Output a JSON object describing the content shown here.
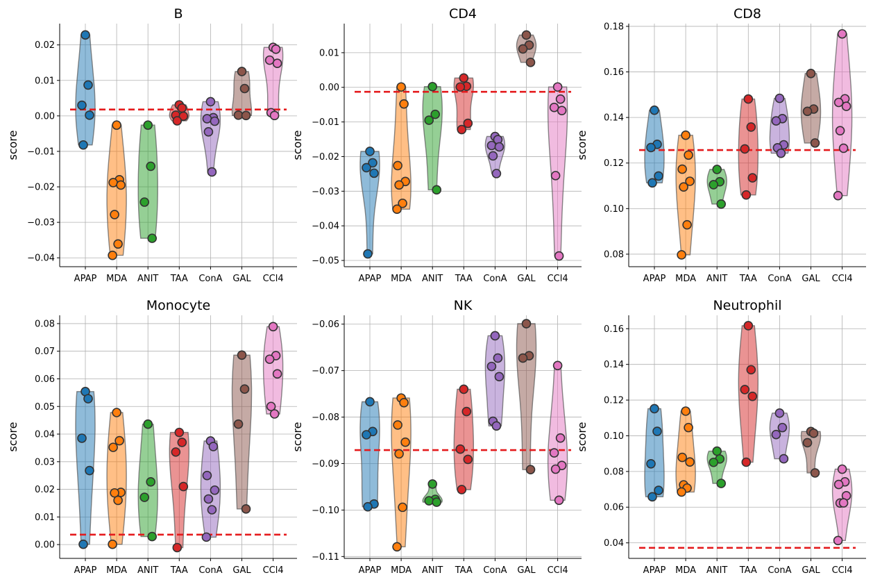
{
  "chart_data": [
    {
      "type": "violin",
      "title": "B",
      "ylabel": "score",
      "categories": [
        "APAP",
        "MDA",
        "ANIT",
        "TAA",
        "ConA",
        "GAL",
        "CCl4"
      ],
      "ylim": [
        -0.0425,
        0.026
      ],
      "yticks": [
        -0.04,
        -0.03,
        -0.02,
        -0.01,
        0.0,
        0.01,
        0.02
      ],
      "ytick_labels": [
        "−0.04",
        "−0.03",
        "−0.02",
        "−0.01",
        "0.00",
        "0.01",
        "0.02"
      ],
      "baseline": 0.0018,
      "grid": true,
      "series": [
        [
          0.0228,
          0.0087,
          0.003,
          0.0002,
          -0.0082
        ],
        [
          -0.0026,
          -0.018,
          -0.0188,
          -0.0195,
          -0.0278,
          -0.0361,
          -0.0393
        ],
        [
          -0.0026,
          -0.0142,
          -0.0243,
          -0.0345
        ],
        [
          0.0031,
          0.0022,
          0.0002,
          -0.0001,
          -0.0014
        ],
        [
          0.004,
          -0.0005,
          -0.0008,
          -0.0015,
          -0.0045,
          -0.0158
        ],
        [
          0.0125,
          0.0077,
          0.0002,
          0.0001
        ],
        [
          0.0193,
          0.0188,
          0.0157,
          0.0148,
          0.0009,
          0.0001
        ]
      ]
    },
    {
      "type": "violin",
      "title": "CD4",
      "ylabel": "score",
      "categories": [
        "APAP",
        "MDA",
        "ANIT",
        "TAA",
        "ConA",
        "GAL",
        "CCl4"
      ],
      "ylim": [
        -0.0518,
        0.0184
      ],
      "yticks": [
        -0.05,
        -0.04,
        -0.03,
        -0.02,
        -0.01,
        0.0,
        0.01
      ],
      "ytick_labels": [
        "−0.05",
        "−0.04",
        "−0.03",
        "−0.02",
        "−0.01",
        "0.00",
        "0.01"
      ],
      "baseline": -0.0013,
      "grid": true,
      "series": [
        [
          -0.0185,
          -0.0218,
          -0.0232,
          -0.0248,
          -0.0481
        ],
        [
          0.0001,
          -0.0048,
          -0.0226,
          -0.0272,
          -0.0282,
          -0.0335,
          -0.0352
        ],
        [
          0.0002,
          -0.0078,
          -0.0095,
          -0.0296
        ],
        [
          0.0027,
          0.0003,
          0.0001,
          -0.0104,
          -0.0122
        ],
        [
          -0.0142,
          -0.0151,
          -0.0168,
          -0.0172,
          -0.0198,
          -0.0249
        ],
        [
          0.0151,
          0.0122,
          0.0111,
          0.0072
        ],
        [
          0.0001,
          -0.0034,
          -0.0058,
          -0.0067,
          -0.0255,
          -0.0487
        ]
      ]
    },
    {
      "type": "violin",
      "title": "CD8",
      "ylabel": "score",
      "categories": [
        "APAP",
        "MDA",
        "ANIT",
        "TAA",
        "ConA",
        "GAL",
        "CCl4"
      ],
      "ylim": [
        0.0745,
        0.1812
      ],
      "yticks": [
        0.08,
        0.1,
        0.12,
        0.14,
        0.16,
        0.18
      ],
      "ytick_labels": [
        "0.08",
        "0.10",
        "0.12",
        "0.14",
        "0.16",
        "0.18"
      ],
      "baseline": 0.1257,
      "grid": true,
      "series": [
        [
          0.1432,
          0.1282,
          0.1268,
          0.1143,
          0.1113
        ],
        [
          0.1322,
          0.1235,
          0.1173,
          0.112,
          0.1095,
          0.0929,
          0.0797
        ],
        [
          0.1172,
          0.1118,
          0.1105,
          0.102
        ],
        [
          0.1481,
          0.1358,
          0.1262,
          0.1135,
          0.106
        ],
        [
          0.1484,
          0.1395,
          0.1385,
          0.128,
          0.1267,
          0.1243
        ],
        [
          0.1593,
          0.1437,
          0.1427,
          0.1288
        ],
        [
          0.1767,
          0.1482,
          0.1466,
          0.1449,
          0.1342,
          0.1265,
          0.1057
        ]
      ]
    },
    {
      "type": "violin",
      "title": "Monocyte",
      "ylabel": "score",
      "categories": [
        "APAP",
        "MDA",
        "ANIT",
        "TAA",
        "ConA",
        "GAL",
        "CCl4"
      ],
      "ylim": [
        -0.005,
        0.083
      ],
      "yticks": [
        0.0,
        0.01,
        0.02,
        0.03,
        0.04,
        0.05,
        0.06,
        0.07,
        0.08
      ],
      "ytick_labels": [
        "0.00",
        "0.01",
        "0.02",
        "0.03",
        "0.04",
        "0.05",
        "0.06",
        "0.07",
        "0.08"
      ],
      "baseline": 0.0036,
      "grid": true,
      "series": [
        [
          0.0554,
          0.0528,
          0.0385,
          0.0268,
          0.0001
        ],
        [
          0.0478,
          0.0376,
          0.0352,
          0.0189,
          0.0187,
          0.016,
          0.0001
        ],
        [
          0.0436,
          0.0227,
          0.0171,
          0.0029
        ],
        [
          0.0406,
          0.037,
          0.0335,
          0.021,
          -0.0011
        ],
        [
          0.0375,
          0.0355,
          0.025,
          0.0197,
          0.0165,
          0.0126,
          0.0027
        ],
        [
          0.0686,
          0.0563,
          0.0436,
          0.0129
        ],
        [
          0.0789,
          0.0684,
          0.0671,
          0.0618,
          0.05,
          0.0473
        ]
      ]
    },
    {
      "type": "violin",
      "title": "NK",
      "ylabel": "score",
      "categories": [
        "APAP",
        "MDA",
        "ANIT",
        "TAA",
        "ConA",
        "GAL",
        "CCl4"
      ],
      "ylim": [
        -0.1104,
        -0.0581
      ],
      "yticks": [
        -0.11,
        -0.1,
        -0.09,
        -0.08,
        -0.07,
        -0.06
      ],
      "ytick_labels": [
        "−0.11",
        "−0.10",
        "−0.09",
        "−0.08",
        "−0.07",
        "−0.06"
      ],
      "baseline": -0.0871,
      "grid": true,
      "series": [
        [
          -0.0767,
          -0.0831,
          -0.0838,
          -0.0987,
          -0.0993
        ],
        [
          -0.0759,
          -0.0769,
          -0.0817,
          -0.0854,
          -0.0879,
          -0.0994,
          -0.1079
        ],
        [
          -0.0944,
          -0.0977,
          -0.098,
          -0.0983
        ],
        [
          -0.074,
          -0.0788,
          -0.0869,
          -0.0891,
          -0.0956
        ],
        [
          -0.0625,
          -0.0673,
          -0.0691,
          -0.0713,
          -0.0809,
          -0.0819
        ],
        [
          -0.0599,
          -0.0668,
          -0.0673,
          -0.0913
        ],
        [
          -0.0689,
          -0.0845,
          -0.0877,
          -0.0904,
          -0.0912,
          -0.0979
        ]
      ]
    },
    {
      "type": "violin",
      "title": "Neutrophil",
      "ylabel": "score",
      "categories": [
        "APAP",
        "MDA",
        "ANIT",
        "TAA",
        "ConA",
        "GAL",
        "CCl4"
      ],
      "ylim": [
        0.0313,
        0.1675
      ],
      "yticks": [
        0.04,
        0.06,
        0.08,
        0.1,
        0.12,
        0.14,
        0.16
      ],
      "ytick_labels": [
        "0.04",
        "0.06",
        "0.08",
        "0.10",
        "0.12",
        "0.14",
        "0.16"
      ],
      "baseline": 0.0372,
      "grid": true,
      "series": [
        [
          0.1152,
          0.1025,
          0.0843,
          0.0694,
          0.0658
        ],
        [
          0.1138,
          0.1046,
          0.0879,
          0.0853,
          0.0725,
          0.0707,
          0.0685
        ],
        [
          0.0914,
          0.087,
          0.0851,
          0.0733
        ],
        [
          0.1617,
          0.137,
          0.1259,
          0.1221,
          0.0852
        ],
        [
          0.1127,
          0.1046,
          0.1007,
          0.0871
        ],
        [
          0.1024,
          0.1014,
          0.0961,
          0.0792
        ],
        [
          0.0813,
          0.0742,
          0.0727,
          0.0664,
          0.0623,
          0.0624,
          0.0413
        ]
      ]
    }
  ],
  "colors": {
    "series": [
      "#1f77b4",
      "#ff7f0e",
      "#2ca02c",
      "#d62728",
      "#9467bd",
      "#8c564b",
      "#e377c2"
    ],
    "baseline": "#e41a1c",
    "point_edge": "#333333",
    "violin_edge": "#555555"
  }
}
